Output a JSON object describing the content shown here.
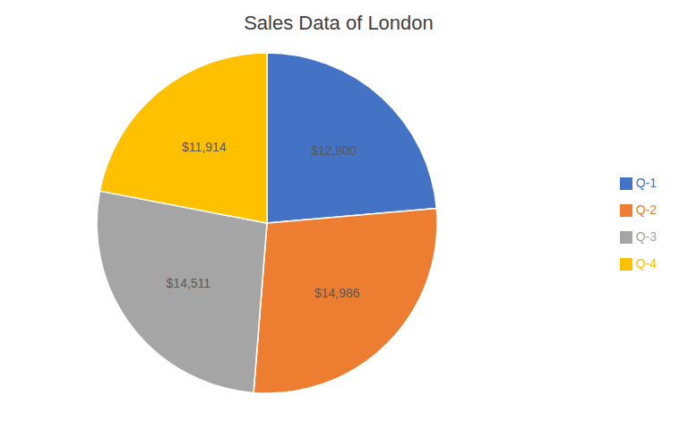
{
  "chart_data": {
    "type": "pie",
    "title": "Sales Data of London",
    "categories": [
      "Q-1",
      "Q-2",
      "Q-3",
      "Q-4"
    ],
    "values": [
      12800,
      14986,
      14511,
      11914
    ],
    "value_labels": [
      "$12,800",
      "$14,986",
      "$14,511",
      "$11,914"
    ],
    "colors": [
      "#4472C4",
      "#ED7D31",
      "#A5A5A5",
      "#FFC000"
    ],
    "data_labels": true,
    "legend": "right"
  }
}
